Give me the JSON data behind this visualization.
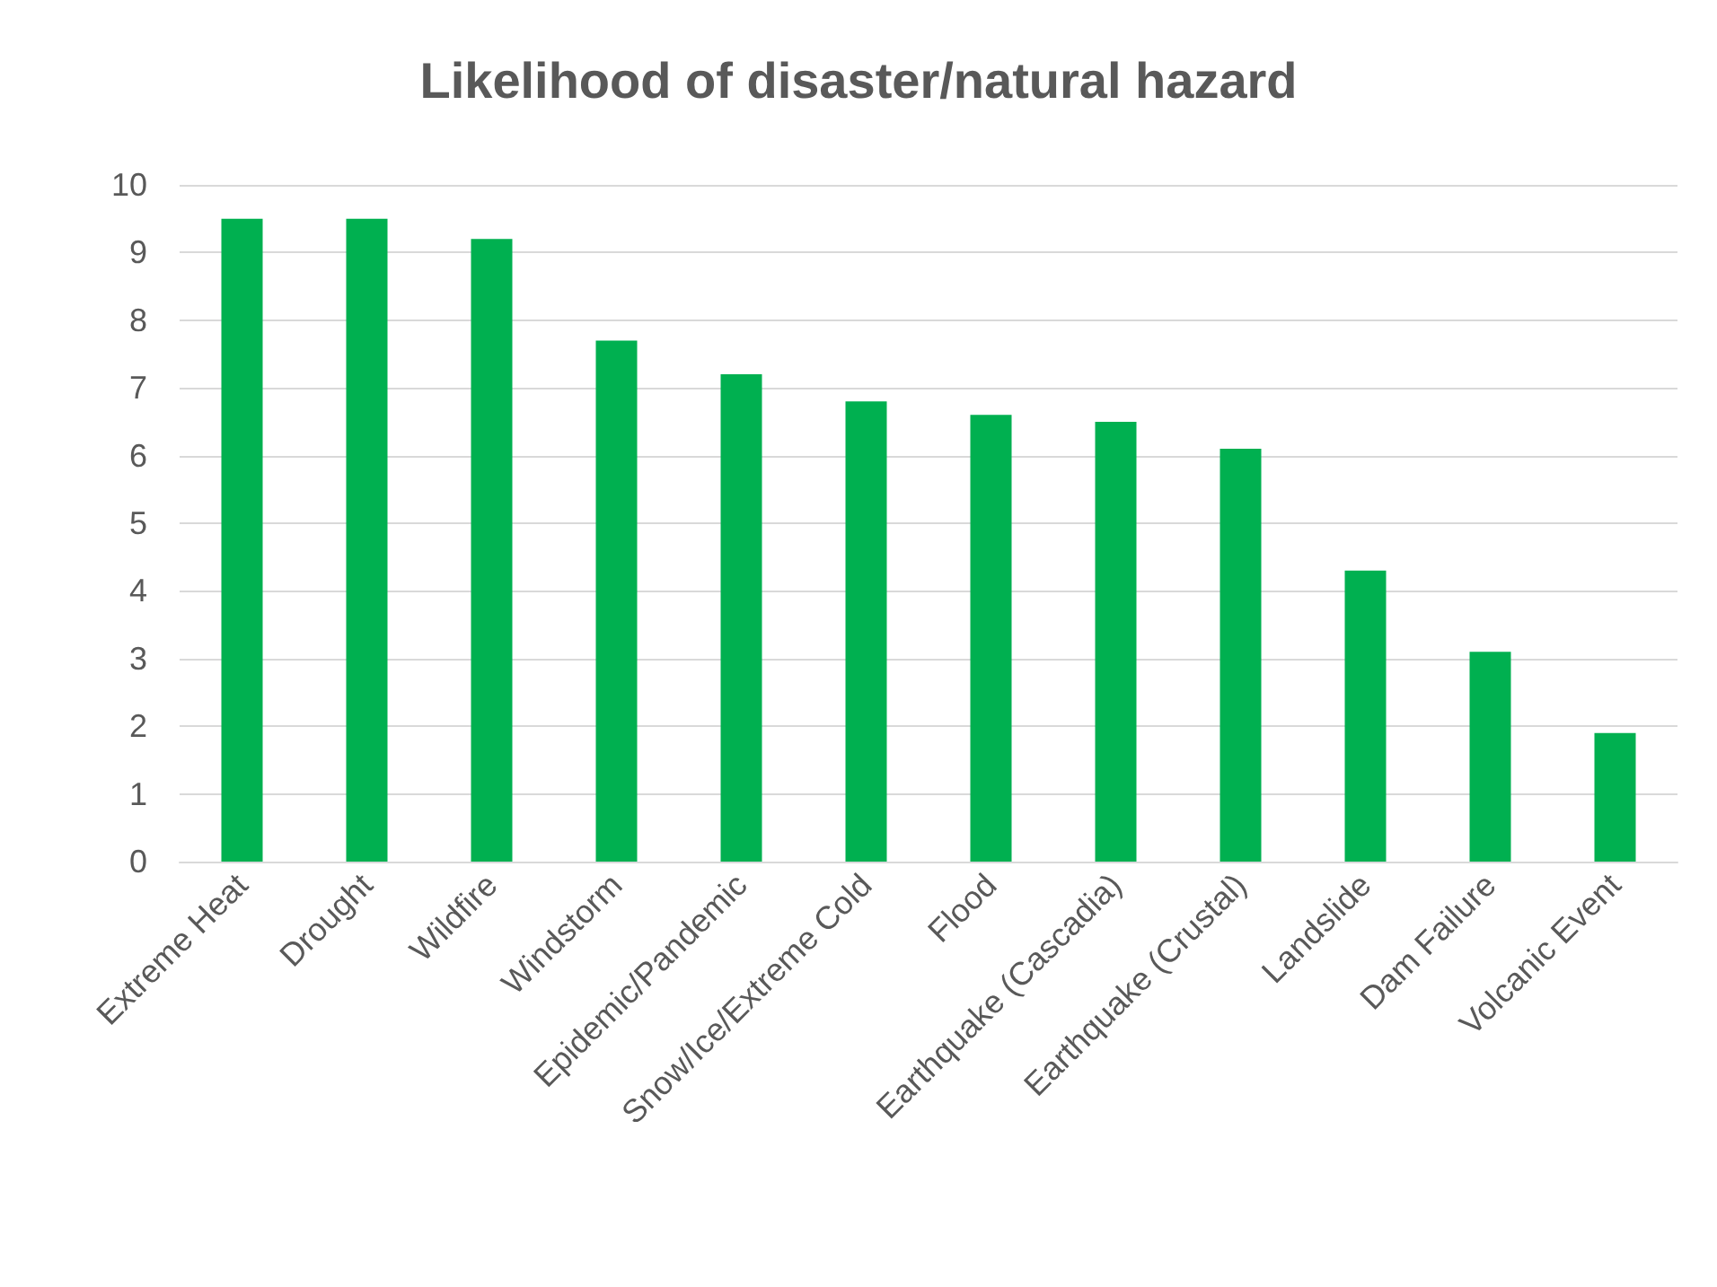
{
  "chart_data": {
    "type": "bar",
    "title": "Likelihood of disaster/natural hazard",
    "categories": [
      "Extreme Heat",
      "Drought",
      "Wildfire",
      "Windstorm",
      "Epidemic/Pandemic",
      "Snow/Ice/Extreme Cold",
      "Flood",
      "Earthquake (Cascadia)",
      "Earthquake (Crustal)",
      "Landslide",
      "Dam Failure",
      "Volcanic Event"
    ],
    "values": [
      9.5,
      9.5,
      9.2,
      7.7,
      7.2,
      6.8,
      6.6,
      6.5,
      6.1,
      4.3,
      3.1,
      1.9
    ],
    "color": "#00b050",
    "ylim": [
      0,
      10
    ],
    "yticks": [
      0,
      1,
      2,
      3,
      4,
      5,
      6,
      7,
      8,
      9,
      10
    ],
    "grid": "y"
  }
}
